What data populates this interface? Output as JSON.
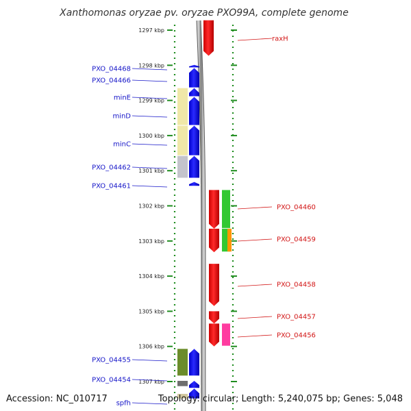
{
  "title": "Xanthomonas oryzae pv. oryzae PXO99A, complete genome",
  "accession": "Accession: NC_010717",
  "summary": "Topology: circular; Length: 5,240,075 bp; Genes: 5,048",
  "colors": {
    "forward_strand": "#0000ff",
    "reverse_strand": "#ff0000",
    "left_label": "#1414c8",
    "right_label": "#d21414",
    "backbone": "#8c8c8c",
    "ruler_dots": "#1e8c1e"
  },
  "scale": {
    "unit": "kbp",
    "ticks": [
      {
        "value": 1297,
        "label": "1297 kbp"
      },
      {
        "value": 1298,
        "label": "1298 kbp"
      },
      {
        "value": 1299,
        "label": "1299 kbp"
      },
      {
        "value": 1300,
        "label": "1300 kbp"
      },
      {
        "value": 1301,
        "label": "1301 kbp"
      },
      {
        "value": 1302,
        "label": "1302 kbp"
      },
      {
        "value": 1303,
        "label": "1303 kbp"
      },
      {
        "value": 1304,
        "label": "1304 kbp"
      },
      {
        "value": 1305,
        "label": "1305 kbp"
      },
      {
        "value": 1306,
        "label": "1306 kbp"
      },
      {
        "value": 1307,
        "label": "1307 kbp"
      }
    ]
  },
  "forward_genes": [
    {
      "start": 1297.99,
      "end": 1298.08,
      "label": "PXO_04468"
    },
    {
      "start": 1298.08,
      "end": 1298.65,
      "label": "PXO_04466"
    },
    {
      "start": 1298.65,
      "end": 1298.9,
      "label": "minE"
    },
    {
      "start": 1298.9,
      "end": 1299.72,
      "label": "minD"
    },
    {
      "start": 1299.72,
      "end": 1300.58,
      "label": "minC"
    },
    {
      "start": 1300.58,
      "end": 1301.22,
      "label": "PXO_04462"
    },
    {
      "start": 1301.32,
      "end": 1301.45,
      "label": "PXO_04461"
    },
    {
      "start": 1306.07,
      "end": 1306.85,
      "label": "PXO_04455"
    },
    {
      "start": 1306.98,
      "end": 1307.2,
      "label": "PXO_04454"
    },
    {
      "start": 1307.2,
      "end": 1307.5,
      "label": "spfh"
    }
  ],
  "reverse_genes": [
    {
      "start": 1296.72,
      "end": 1297.73,
      "label": "raxH"
    },
    {
      "start": 1301.55,
      "end": 1302.65,
      "label": "PXO_04460"
    },
    {
      "start": 1302.65,
      "end": 1303.32,
      "label": "PXO_04459"
    },
    {
      "start": 1303.65,
      "end": 1304.85,
      "label": "PXO_04458"
    },
    {
      "start": 1305.0,
      "end": 1305.35,
      "label": "PXO_04457"
    },
    {
      "start": 1305.35,
      "end": 1306.0,
      "label": "PXO_04456"
    }
  ],
  "forward_domains": [
    {
      "start": 1298.65,
      "end": 1299.72,
      "color": "#f0e8a8"
    },
    {
      "start": 1299.72,
      "end": 1300.58,
      "color": "#f0e8a8"
    },
    {
      "start": 1300.58,
      "end": 1301.22,
      "color": "#c4c4cc"
    },
    {
      "start": 1306.07,
      "end": 1306.85,
      "color": "#6b8c2a"
    },
    {
      "start": 1306.98,
      "end": 1307.15,
      "color": "#6e6e6e"
    },
    {
      "start": 1307.35,
      "end": 1307.5,
      "color": "#d2c8a0"
    }
  ],
  "reverse_domains": [
    {
      "start": 1301.55,
      "end": 1302.65,
      "color": "#32c832"
    },
    {
      "start": 1302.65,
      "end": 1303.32,
      "color": "#32c832"
    },
    {
      "start": 1302.65,
      "end": 1303.32,
      "color": "#ff9600"
    },
    {
      "start": 1305.35,
      "end": 1306.0,
      "color": "#ff3ca0"
    }
  ]
}
